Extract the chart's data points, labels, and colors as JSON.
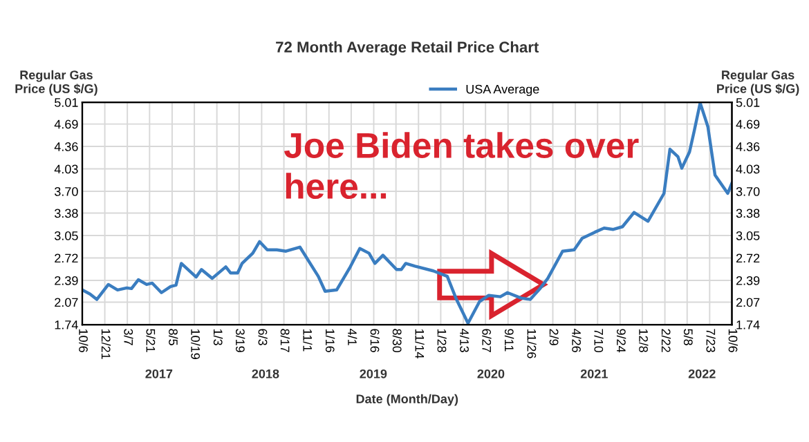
{
  "chart_data": {
    "type": "line",
    "title": "72 Month Average Retail Price Chart",
    "xlabel": "Date (Month/Day)",
    "ylabel": "Regular Gas\nPrice (US $/G)",
    "y2label": "Regular Gas\nPrice (US $/G)",
    "x": [
      "2016-10-06",
      "2016-11-01",
      "2016-11-24",
      "2017-01-02",
      "2017-02-02",
      "2017-03-05",
      "2017-03-21",
      "2017-04-13",
      "2017-05-11",
      "2017-05-30",
      "2017-06-30",
      "2017-07-31",
      "2017-08-18",
      "2017-09-05",
      "2017-10-25",
      "2017-11-12",
      "2017-12-18",
      "2018-02-02",
      "2018-02-18",
      "2018-03-14",
      "2018-03-29",
      "2018-05-04",
      "2018-05-27",
      "2018-06-22",
      "2018-07-24",
      "2018-08-24",
      "2018-10-10",
      "2018-12-11",
      "2019-01-03",
      "2019-02-11",
      "2019-03-29",
      "2019-04-30",
      "2019-05-31",
      "2019-06-20",
      "2019-07-17",
      "2019-09-01",
      "2019-09-17",
      "2019-10-02",
      "2019-11-02",
      "2020-01-03",
      "2020-02-19",
      "2020-03-21",
      "2020-04-29",
      "2020-06-07",
      "2020-07-08",
      "2020-08-16",
      "2020-09-09",
      "2020-10-25",
      "2020-11-25",
      "2020-12-26",
      "2021-01-23",
      "2021-03-14",
      "2021-04-22",
      "2021-05-19",
      "2021-07-01",
      "2021-08-01",
      "2021-09-01",
      "2021-10-02",
      "2021-11-10",
      "2021-12-27",
      "2022-02-19",
      "2022-03-11",
      "2022-04-07",
      "2022-04-20",
      "2022-05-16",
      "2022-06-01",
      "2022-06-21",
      "2022-07-17",
      "2022-08-10",
      "2022-09-22",
      "2022-10-06"
    ],
    "series": [
      {
        "name": "USA Average",
        "color": "#3a7dc0",
        "values": [
          2.25,
          2.19,
          2.11,
          2.33,
          2.25,
          2.28,
          2.27,
          2.4,
          2.33,
          2.35,
          2.21,
          2.3,
          2.32,
          2.64,
          2.44,
          2.55,
          2.42,
          2.59,
          2.5,
          2.5,
          2.64,
          2.79,
          2.96,
          2.84,
          2.84,
          2.82,
          2.88,
          2.45,
          2.23,
          2.25,
          2.59,
          2.86,
          2.79,
          2.64,
          2.76,
          2.55,
          2.55,
          2.64,
          2.6,
          2.53,
          2.45,
          2.11,
          1.76,
          2.08,
          2.17,
          2.15,
          2.21,
          2.13,
          2.11,
          2.26,
          2.42,
          2.82,
          2.84,
          3.01,
          3.1,
          3.16,
          3.14,
          3.18,
          3.39,
          3.26,
          3.67,
          4.32,
          4.21,
          4.04,
          4.28,
          4.59,
          5.0,
          4.65,
          3.94,
          3.67,
          3.82
        ]
      }
    ],
    "xlim": [
      "2016-10-06",
      "2022-10-06"
    ],
    "xticks": [
      {
        "value": "2016-10-06",
        "label": "10/6"
      },
      {
        "value": "2016-12-21",
        "label": "12/21"
      },
      {
        "value": "2017-03-07",
        "label": "3/7"
      },
      {
        "value": "2017-05-21",
        "label": "5/21"
      },
      {
        "value": "2017-08-05",
        "label": "8/5"
      },
      {
        "value": "2017-10-19",
        "label": "10/19"
      },
      {
        "value": "2018-01-03",
        "label": "1/3"
      },
      {
        "value": "2018-03-19",
        "label": "3/19"
      },
      {
        "value": "2018-06-03",
        "label": "6/3"
      },
      {
        "value": "2018-08-17",
        "label": "8/17"
      },
      {
        "value": "2018-11-01",
        "label": "11/1"
      },
      {
        "value": "2019-01-16",
        "label": "1/16"
      },
      {
        "value": "2019-04-01",
        "label": "4/1"
      },
      {
        "value": "2019-06-16",
        "label": "6/16"
      },
      {
        "value": "2019-08-30",
        "label": "8/30"
      },
      {
        "value": "2019-11-14",
        "label": "11/14"
      },
      {
        "value": "2020-01-28",
        "label": "1/28"
      },
      {
        "value": "2020-04-13",
        "label": "4/13"
      },
      {
        "value": "2020-06-27",
        "label": "6/27"
      },
      {
        "value": "2020-09-11",
        "label": "9/11"
      },
      {
        "value": "2020-11-26",
        "label": "11/26"
      },
      {
        "value": "2021-02-09",
        "label": "2/9"
      },
      {
        "value": "2021-04-26",
        "label": "4/26"
      },
      {
        "value": "2021-07-10",
        "label": "7/10"
      },
      {
        "value": "2021-09-24",
        "label": "9/24"
      },
      {
        "value": "2021-12-08",
        "label": "12/8"
      },
      {
        "value": "2022-02-22",
        "label": "2/22"
      },
      {
        "value": "2022-05-08",
        "label": "5/8"
      },
      {
        "value": "2022-07-23",
        "label": "7/23"
      },
      {
        "value": "2022-10-06",
        "label": "10/6"
      }
    ],
    "ylim": [
      1.74,
      5.01
    ],
    "yticks": [
      1.74,
      2.07,
      2.39,
      2.72,
      3.05,
      3.38,
      {
        "value": 3.7,
        "label": "3.70"
      },
      4.03,
      4.36,
      4.69,
      5.01
    ],
    "y2lim": [
      1.74,
      5.01
    ],
    "y2ticks": [
      1.74,
      2.07,
      2.39,
      2.72,
      3.05,
      3.38,
      {
        "value": 3.7,
        "label": "3.70"
      },
      4.03,
      4.36,
      4.69,
      5.01
    ],
    "annotations": [
      "Joe Biden takes over\nhere...",
      "2017",
      "2018",
      "2019",
      "2020",
      "2021",
      "2022"
    ],
    "grid": true,
    "legend": "top",
    "marker": "none",
    "line_style": "solid"
  }
}
